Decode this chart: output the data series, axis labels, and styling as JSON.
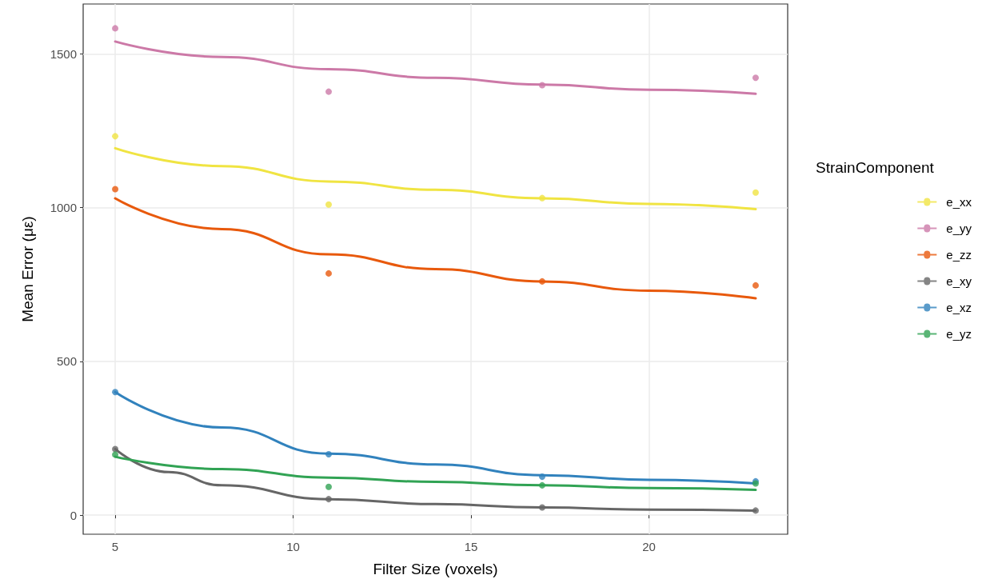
{
  "chart_data": {
    "type": "scatter",
    "xlabel": "Filter Size (voxels)",
    "ylabel": "Mean Error (με)",
    "legend_title": "StrainComponent",
    "legend": "right",
    "grid": true,
    "marker": "circle",
    "xlim": [
      4.1,
      23.9
    ],
    "xticks": [
      5,
      10,
      15,
      20
    ],
    "ylim": [
      -62,
      1662
    ],
    "yticks": [
      0,
      500,
      1000,
      1500
    ],
    "series": [
      {
        "name": "e_xx",
        "color": "#f0e442",
        "x": [
          5,
          11,
          17,
          23
        ],
        "values": [
          1232,
          1010,
          1031,
          1049
        ]
      },
      {
        "name": "e_yy",
        "color": "#cc79a7",
        "x": [
          5,
          11,
          17,
          23
        ],
        "values": [
          1583,
          1377,
          1398,
          1422
        ]
      },
      {
        "name": "e_zz",
        "color": "#e8590c",
        "x": [
          5,
          11,
          17,
          23
        ],
        "values": [
          1060,
          786,
          760,
          747
        ]
      },
      {
        "name": "e_xy",
        "color": "#666666",
        "x": [
          5,
          11,
          17,
          23
        ],
        "values": [
          215,
          52,
          25,
          15
        ]
      },
      {
        "name": "e_xz",
        "color": "#3182bd",
        "x": [
          5,
          11,
          17,
          23
        ],
        "values": [
          400,
          198,
          125,
          110
        ]
      },
      {
        "name": "e_yz",
        "color": "#31a354",
        "x": [
          5,
          11,
          17,
          23
        ],
        "values": [
          197,
          92,
          97,
          103
        ]
      },
      {
        "type": "line",
        "marker": "none",
        "line_style": "solid",
        "color": "#f0e442",
        "x": [
          5,
          8,
          11,
          14,
          17,
          20,
          23
        ],
        "values": [
          1193,
          1135,
          1085,
          1058,
          1030,
          1012,
          995
        ]
      },
      {
        "type": "line",
        "marker": "none",
        "line_style": "solid",
        "color": "#cc79a7",
        "x": [
          5,
          8,
          11,
          14,
          17,
          20,
          23
        ],
        "values": [
          1540,
          1490,
          1450,
          1422,
          1400,
          1383,
          1370
        ]
      },
      {
        "type": "line",
        "marker": "none",
        "line_style": "solid",
        "color": "#e8590c",
        "x": [
          5,
          8,
          11,
          14,
          17,
          20,
          23
        ],
        "values": [
          1030,
          930,
          848,
          800,
          760,
          730,
          705
        ]
      },
      {
        "type": "line",
        "marker": "none",
        "line_style": "solid",
        "color": "#666666",
        "x": [
          5,
          6.5,
          8,
          11,
          14,
          17,
          20,
          23
        ],
        "values": [
          215,
          140,
          97,
          52,
          36,
          25,
          18,
          15
        ]
      },
      {
        "type": "line",
        "marker": "none",
        "line_style": "solid",
        "color": "#3182bd",
        "x": [
          5,
          8,
          11,
          14,
          17,
          20,
          23
        ],
        "values": [
          400,
          285,
          200,
          165,
          130,
          115,
          103
        ]
      },
      {
        "type": "line",
        "marker": "none",
        "line_style": "solid",
        "color": "#31a354",
        "x": [
          5,
          8,
          11,
          14,
          17,
          20,
          23
        ],
        "values": [
          190,
          150,
          122,
          108,
          97,
          88,
          82
        ]
      }
    ]
  }
}
